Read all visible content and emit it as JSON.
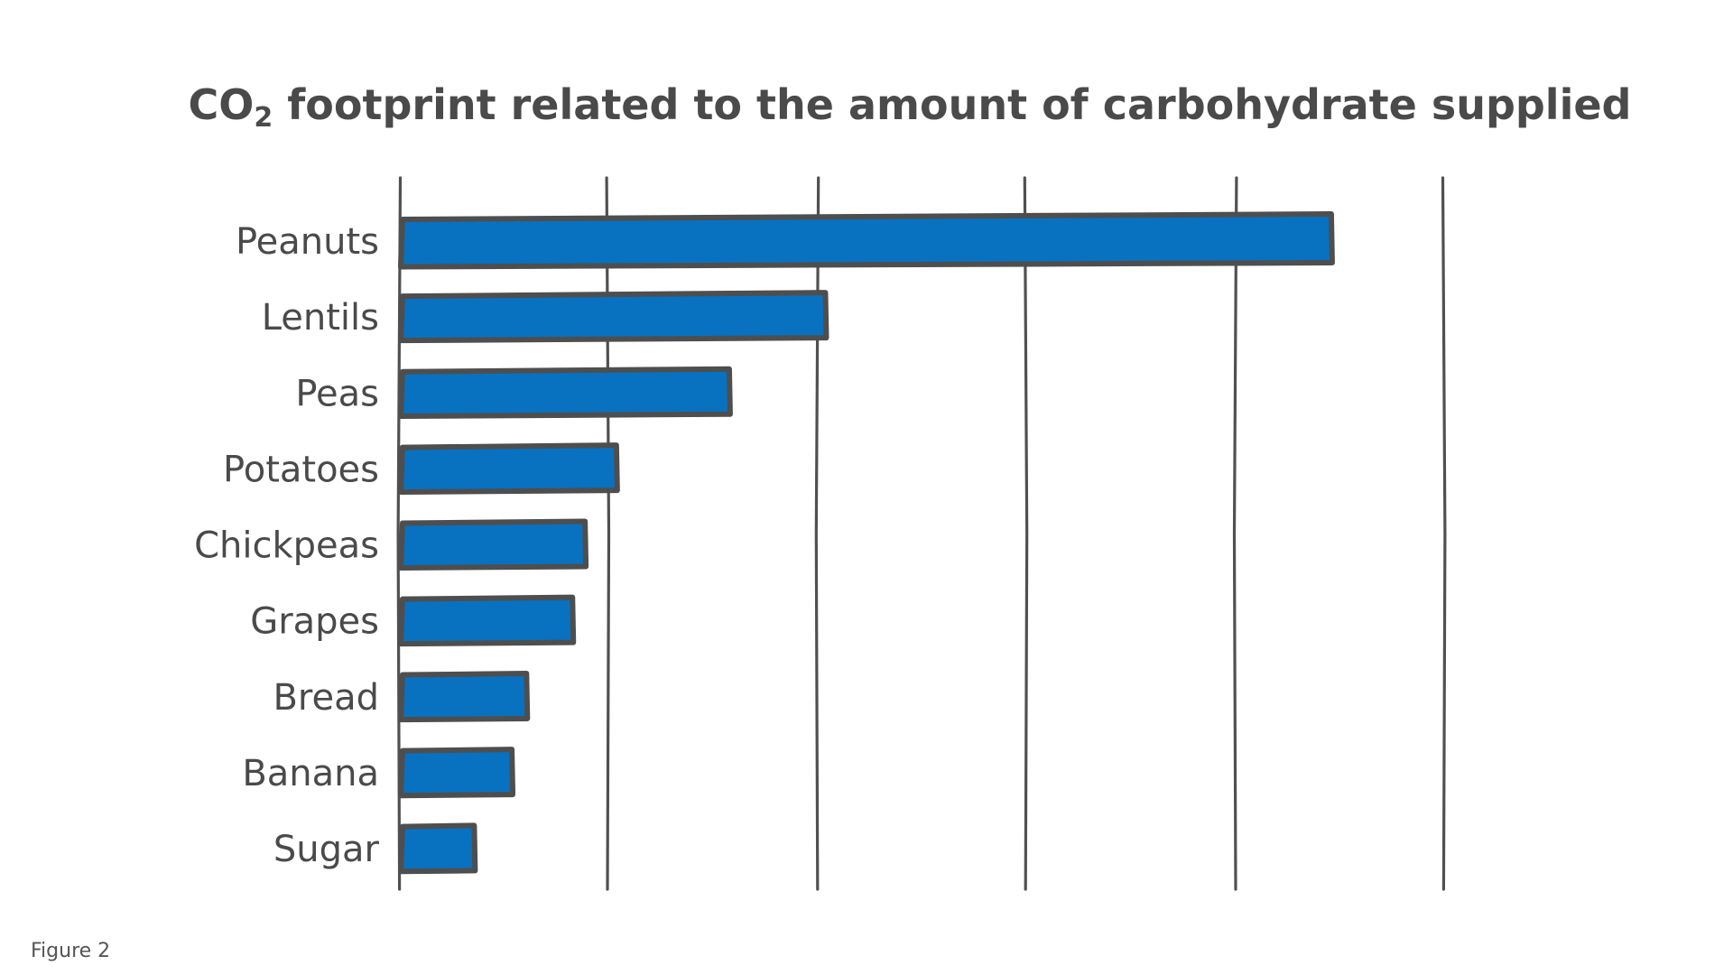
{
  "caption": "Figure 2",
  "chart_data": {
    "type": "bar",
    "orientation": "horizontal",
    "title": {
      "prefix": "CO",
      "subscript": "2",
      "suffix": " footprint related to the amount of carbohydrate supplied"
    },
    "xlabel": "",
    "ylabel": "",
    "categories": [
      "Peanuts",
      "Lentils",
      "Peas",
      "Potatoes",
      "Chickpeas",
      "Grapes",
      "Bread",
      "Banana",
      "Sugar"
    ],
    "values": [
      4.46,
      2.04,
      1.58,
      1.04,
      0.89,
      0.83,
      0.61,
      0.54,
      0.36
    ],
    "xlim": [
      0,
      5
    ],
    "x_ticks": [
      0,
      1,
      2,
      3,
      4,
      5
    ],
    "tick_labels_shown": false,
    "grid": true,
    "grid_axis": "x",
    "legend": "none",
    "bar_color": "#0872c1",
    "outline_color": "#4e4e4e",
    "style": "hand-drawn"
  }
}
